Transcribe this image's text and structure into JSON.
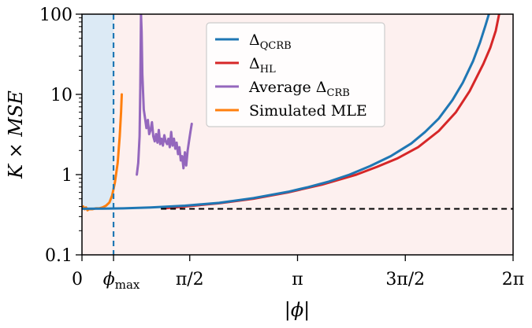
{
  "chart_data": {
    "type": "line",
    "xlabel": "|ϕ|",
    "ylabel": "K × MSE",
    "yscale": "log",
    "xlim": [
      0,
      6.2832
    ],
    "ylim": [
      0.1,
      100
    ],
    "x_ticks": [
      {
        "value": 0,
        "label": "0"
      },
      {
        "value": 0.46,
        "label": "ϕ",
        "sub": "max"
      },
      {
        "value": 1.5708,
        "label": "π/2"
      },
      {
        "value": 3.1416,
        "label": "π"
      },
      {
        "value": 4.7124,
        "label": "3π/2"
      },
      {
        "value": 6.2832,
        "label": "2π"
      }
    ],
    "y_ticks": [
      {
        "value": 0.1,
        "label": "0.1"
      },
      {
        "value": 1,
        "label": "1"
      },
      {
        "value": 10,
        "label": "10"
      },
      {
        "value": 100,
        "label": "100"
      }
    ],
    "shaded_regions": [
      {
        "name": "blue-region",
        "x": [
          0,
          0.46
        ],
        "color": "#dceaf5"
      },
      {
        "name": "red-region",
        "x": [
          0,
          6.2832
        ],
        "color": "#fdf0ef"
      }
    ],
    "reference_lines": [
      {
        "name": "phi-max-vline",
        "orientation": "vertical",
        "value": 0.46,
        "color": "#1f77b4"
      },
      {
        "name": "baseline-hline",
        "orientation": "horizontal",
        "value": 0.375,
        "x_from": 1.15,
        "color": "#000000"
      }
    ],
    "series": [
      {
        "name": "Δ_QCRB",
        "color": "#1f77b4",
        "x": [
          0,
          0.3,
          0.6,
          1.0,
          1.5,
          2.0,
          2.5,
          3.0,
          3.3,
          3.6,
          3.9,
          4.2,
          4.5,
          4.8,
          5.0,
          5.2,
          5.4,
          5.55,
          5.7,
          5.8,
          5.88,
          5.93
        ],
        "y": [
          0.375,
          0.376,
          0.38,
          0.39,
          0.41,
          0.445,
          0.51,
          0.61,
          0.7,
          0.82,
          1.0,
          1.28,
          1.7,
          2.45,
          3.4,
          5.0,
          8.5,
          14.0,
          26.0,
          44.0,
          72.0,
          100
        ]
      },
      {
        "name": "Δ_HL",
        "color": "#d62728",
        "x": [
          1.2,
          2.0,
          2.5,
          3.0,
          3.5,
          4.0,
          4.3,
          4.6,
          4.9,
          5.2,
          5.45,
          5.65,
          5.85,
          5.95,
          6.03,
          6.08
        ],
        "y": [
          0.38,
          0.44,
          0.5,
          0.6,
          0.75,
          1.0,
          1.25,
          1.6,
          2.2,
          3.5,
          6.0,
          11.0,
          24.0,
          38.0,
          62.0,
          100
        ]
      },
      {
        "name": "Average Δ_CRB",
        "color": "#9467bd",
        "x": [
          0.8,
          0.82,
          0.84,
          0.85,
          0.86,
          0.87,
          0.88,
          0.9,
          0.92,
          0.94,
          0.96,
          0.98,
          1.0,
          1.02,
          1.04,
          1.06,
          1.08,
          1.1,
          1.12,
          1.14,
          1.16,
          1.18,
          1.2,
          1.22,
          1.24,
          1.26,
          1.28,
          1.3,
          1.32,
          1.34,
          1.36,
          1.38,
          1.4,
          1.42,
          1.44,
          1.46,
          1.48,
          1.5,
          1.52,
          1.54,
          1.56,
          1.58,
          1.6
        ],
        "y": [
          1.0,
          1.4,
          3.0,
          12.0,
          100,
          60.0,
          18.0,
          6.5,
          5.0,
          3.8,
          4.8,
          3.2,
          3.6,
          4.5,
          3.0,
          2.6,
          3.2,
          2.5,
          3.6,
          2.4,
          2.8,
          2.3,
          3.1,
          2.6,
          2.4,
          2.8,
          2.2,
          3.4,
          2.3,
          2.8,
          2.1,
          2.5,
          1.8,
          2.2,
          1.5,
          1.7,
          1.2,
          1.9,
          1.3,
          2.0,
          2.6,
          3.4,
          4.3
        ]
      },
      {
        "name": "Simulated MLE",
        "color": "#ff7f0e",
        "x": [
          0,
          0.02,
          0.04,
          0.06,
          0.08,
          0.1,
          0.15,
          0.2,
          0.25,
          0.3,
          0.35,
          0.4,
          0.44,
          0.48,
          0.52,
          0.55,
          0.57,
          0.58
        ],
        "y": [
          0.38,
          0.4,
          0.37,
          0.39,
          0.36,
          0.37,
          0.37,
          0.38,
          0.38,
          0.39,
          0.41,
          0.45,
          0.55,
          0.8,
          1.4,
          3.0,
          6.0,
          10.0
        ]
      }
    ],
    "legend": {
      "placement": "top-center",
      "entries": [
        {
          "label": "Δ",
          "sub": "QCRB",
          "color": "#1f77b4"
        },
        {
          "label": "Δ",
          "sub": "HL",
          "color": "#d62728"
        },
        {
          "label": "Average Δ",
          "sub": "CRB",
          "color": "#9467bd"
        },
        {
          "label": "Simulated MLE",
          "sub": "",
          "color": "#ff7f0e"
        }
      ]
    }
  }
}
